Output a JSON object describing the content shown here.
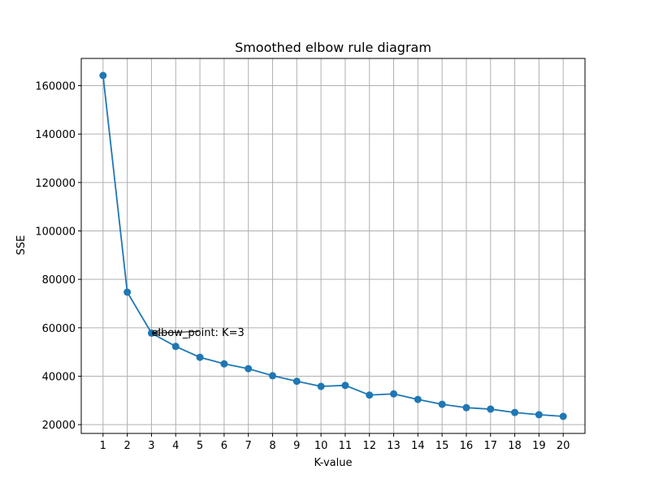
{
  "chart_data": {
    "type": "line",
    "title": "Smoothed elbow rule diagram",
    "xlabel": "K-value",
    "ylabel": "SSE",
    "x": [
      1,
      2,
      3,
      4,
      5,
      6,
      7,
      8,
      9,
      10,
      11,
      12,
      13,
      14,
      15,
      16,
      17,
      18,
      19,
      20
    ],
    "series": [
      {
        "values": [
          164200,
          74700,
          57800,
          52300,
          47800,
          45100,
          43100,
          40200,
          37900,
          35800,
          36200,
          32200,
          32700,
          30400,
          28400,
          27000,
          26400,
          25000,
          24100,
          23400
        ],
        "color": "#1f77b4",
        "marker": "circle"
      }
    ],
    "xticks": [
      1,
      2,
      3,
      4,
      5,
      6,
      7,
      8,
      9,
      10,
      11,
      12,
      13,
      14,
      15,
      16,
      17,
      18,
      19,
      20
    ],
    "yticks": [
      20000,
      40000,
      60000,
      80000,
      100000,
      120000,
      140000,
      160000
    ],
    "xlim": [
      0.1,
      20.9
    ],
    "ylim": [
      16361,
      171239
    ],
    "grid": true,
    "annotation": {
      "text": "elbow_point: K=3",
      "point": {
        "x": 3,
        "y": 57800
      },
      "text_at": {
        "x": 3,
        "y": 58300
      }
    }
  }
}
